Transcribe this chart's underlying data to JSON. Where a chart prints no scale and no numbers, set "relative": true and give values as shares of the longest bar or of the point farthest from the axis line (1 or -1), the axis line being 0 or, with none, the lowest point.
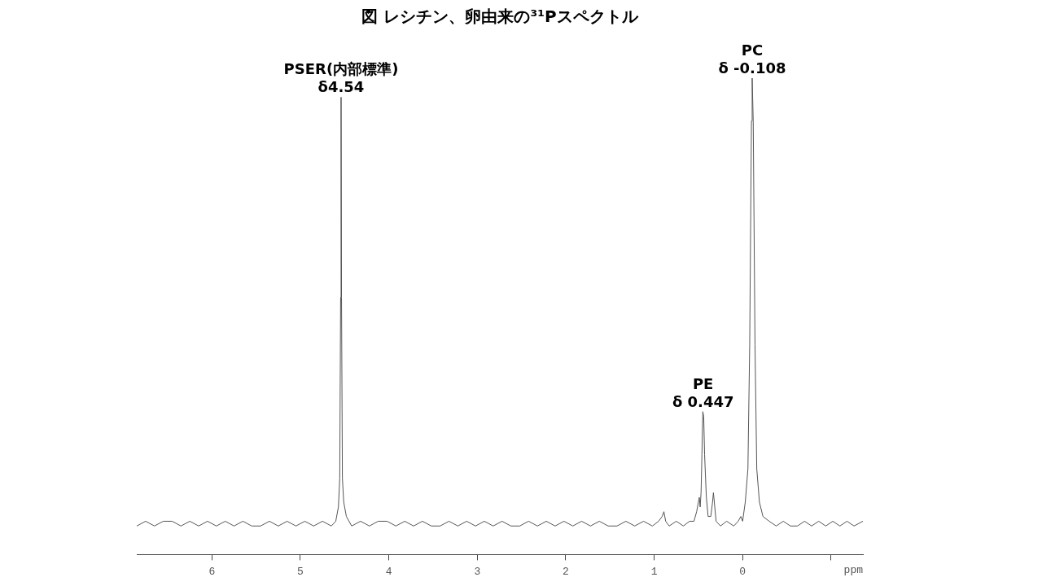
{
  "chart_data": {
    "type": "line",
    "title": "図 レシチン、卵由来の³¹Pスペクトル",
    "xlabel": "ppm",
    "relative": true,
    "legend": false,
    "grid": false,
    "marker": "none",
    "tick_labels": "x",
    "xlim": [
      6.85,
      -1.36
    ],
    "xticks": [
      6,
      5,
      4,
      3,
      2,
      1,
      0,
      {
        "value": -1,
        "label": null
      }
    ],
    "annotations": [
      {
        "text": "PSER(内部標準)\nδ4.54",
        "x": 4.54,
        "y": 0.96
      },
      {
        "text": "PE\nδ 0.447",
        "x": 0.447,
        "y": 0.3
      },
      {
        "text": "PC\nδ -0.108",
        "x": -0.108,
        "y": 1
      }
    ],
    "series": [
      {
        "color": "#555555",
        "x": [
          6.85,
          6.75,
          6.65,
          6.55,
          6.45,
          6.35,
          6.25,
          6.15,
          6.05,
          5.95,
          5.85,
          5.75,
          5.65,
          5.55,
          5.45,
          5.35,
          5.25,
          5.15,
          5.05,
          4.95,
          4.85,
          4.75,
          4.65,
          4.6,
          4.57,
          4.555,
          4.545,
          4.54,
          4.535,
          4.525,
          4.51,
          4.48,
          4.42,
          4.32,
          4.22,
          4.12,
          4.02,
          3.92,
          3.82,
          3.72,
          3.62,
          3.52,
          3.42,
          3.32,
          3.22,
          3.12,
          3.02,
          2.92,
          2.82,
          2.72,
          2.62,
          2.52,
          2.42,
          2.32,
          2.22,
          2.12,
          2.02,
          1.92,
          1.82,
          1.72,
          1.62,
          1.52,
          1.42,
          1.32,
          1.22,
          1.12,
          1.02,
          0.95,
          0.91,
          0.89,
          0.87,
          0.83,
          0.75,
          0.67,
          0.6,
          0.55,
          0.52,
          0.5,
          0.49,
          0.48,
          0.47,
          0.46,
          0.45,
          0.44,
          0.43,
          0.41,
          0.39,
          0.36,
          0.34,
          0.33,
          0.32,
          0.3,
          0.25,
          0.18,
          0.1,
          0.05,
          0.02,
          0.0,
          -0.03,
          -0.06,
          -0.08,
          -0.1,
          -0.108,
          -0.12,
          -0.14,
          -0.16,
          -0.19,
          -0.23,
          -0.3,
          -0.38,
          -0.46,
          -0.54,
          -0.62,
          -0.7,
          -0.78,
          -0.86,
          -0.94,
          -1.02,
          -1.1,
          -1.18,
          -1.26,
          -1.36
        ],
        "values": [
          0.06,
          0.07,
          0.06,
          0.07,
          0.07,
          0.06,
          0.07,
          0.06,
          0.07,
          0.06,
          0.07,
          0.06,
          0.07,
          0.06,
          0.06,
          0.07,
          0.06,
          0.07,
          0.06,
          0.07,
          0.06,
          0.07,
          0.06,
          0.07,
          0.1,
          0.16,
          0.54,
          0.96,
          0.54,
          0.16,
          0.11,
          0.08,
          0.06,
          0.07,
          0.06,
          0.07,
          0.07,
          0.06,
          0.07,
          0.06,
          0.07,
          0.06,
          0.06,
          0.07,
          0.06,
          0.07,
          0.06,
          0.07,
          0.06,
          0.07,
          0.06,
          0.06,
          0.07,
          0.06,
          0.07,
          0.06,
          0.07,
          0.06,
          0.07,
          0.06,
          0.07,
          0.06,
          0.06,
          0.07,
          0.06,
          0.07,
          0.06,
          0.07,
          0.08,
          0.09,
          0.07,
          0.06,
          0.07,
          0.06,
          0.07,
          0.07,
          0.09,
          0.11,
          0.12,
          0.1,
          0.13,
          0.21,
          0.3,
          0.29,
          0.21,
          0.12,
          0.08,
          0.08,
          0.11,
          0.13,
          0.11,
          0.07,
          0.06,
          0.07,
          0.06,
          0.07,
          0.08,
          0.07,
          0.11,
          0.18,
          0.44,
          0.91,
          1,
          0.91,
          0.44,
          0.18,
          0.11,
          0.08,
          0.07,
          0.06,
          0.07,
          0.06,
          0.06,
          0.07,
          0.06,
          0.07,
          0.06,
          0.07,
          0.06,
          0.07,
          0.06,
          0.07
        ]
      }
    ]
  }
}
